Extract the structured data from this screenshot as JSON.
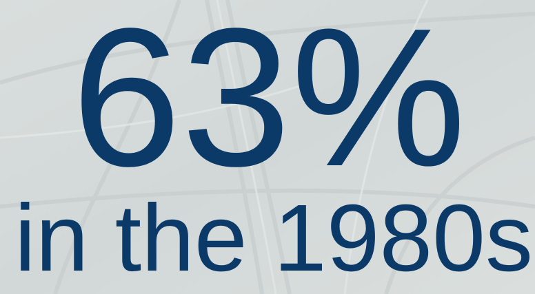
{
  "headline": {
    "stat": "63%",
    "caption": "in the 1980s"
  }
}
